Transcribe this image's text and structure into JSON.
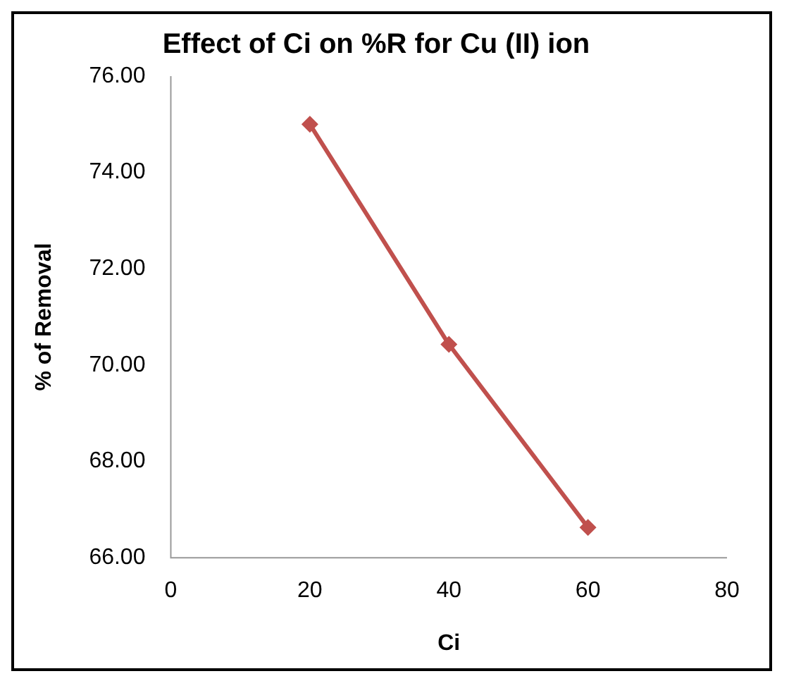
{
  "chart_data": {
    "type": "line",
    "title": "Effect of Ci on %R for Cu (II) ion",
    "xlabel": "Ci",
    "ylabel": "% of Removal",
    "x": [
      20,
      40,
      60
    ],
    "series": [
      {
        "color": "#c0504d",
        "values": [
          75.0,
          70.43,
          66.63
        ]
      }
    ],
    "xlim": [
      0,
      80
    ],
    "xticks": [
      0,
      20,
      40,
      60,
      80
    ],
    "ylim": [
      66,
      76
    ],
    "yticks": [
      {
        "value": 66,
        "label": "66.00"
      },
      {
        "value": 68,
        "label": "68.00"
      },
      {
        "value": 70,
        "label": "70.00"
      },
      {
        "value": 72,
        "label": "72.00"
      },
      {
        "value": 74,
        "label": "74.00"
      },
      {
        "value": 76,
        "label": "76.00"
      }
    ],
    "grid": false,
    "legend": false,
    "marker": "diamond",
    "line_style": "solid"
  }
}
